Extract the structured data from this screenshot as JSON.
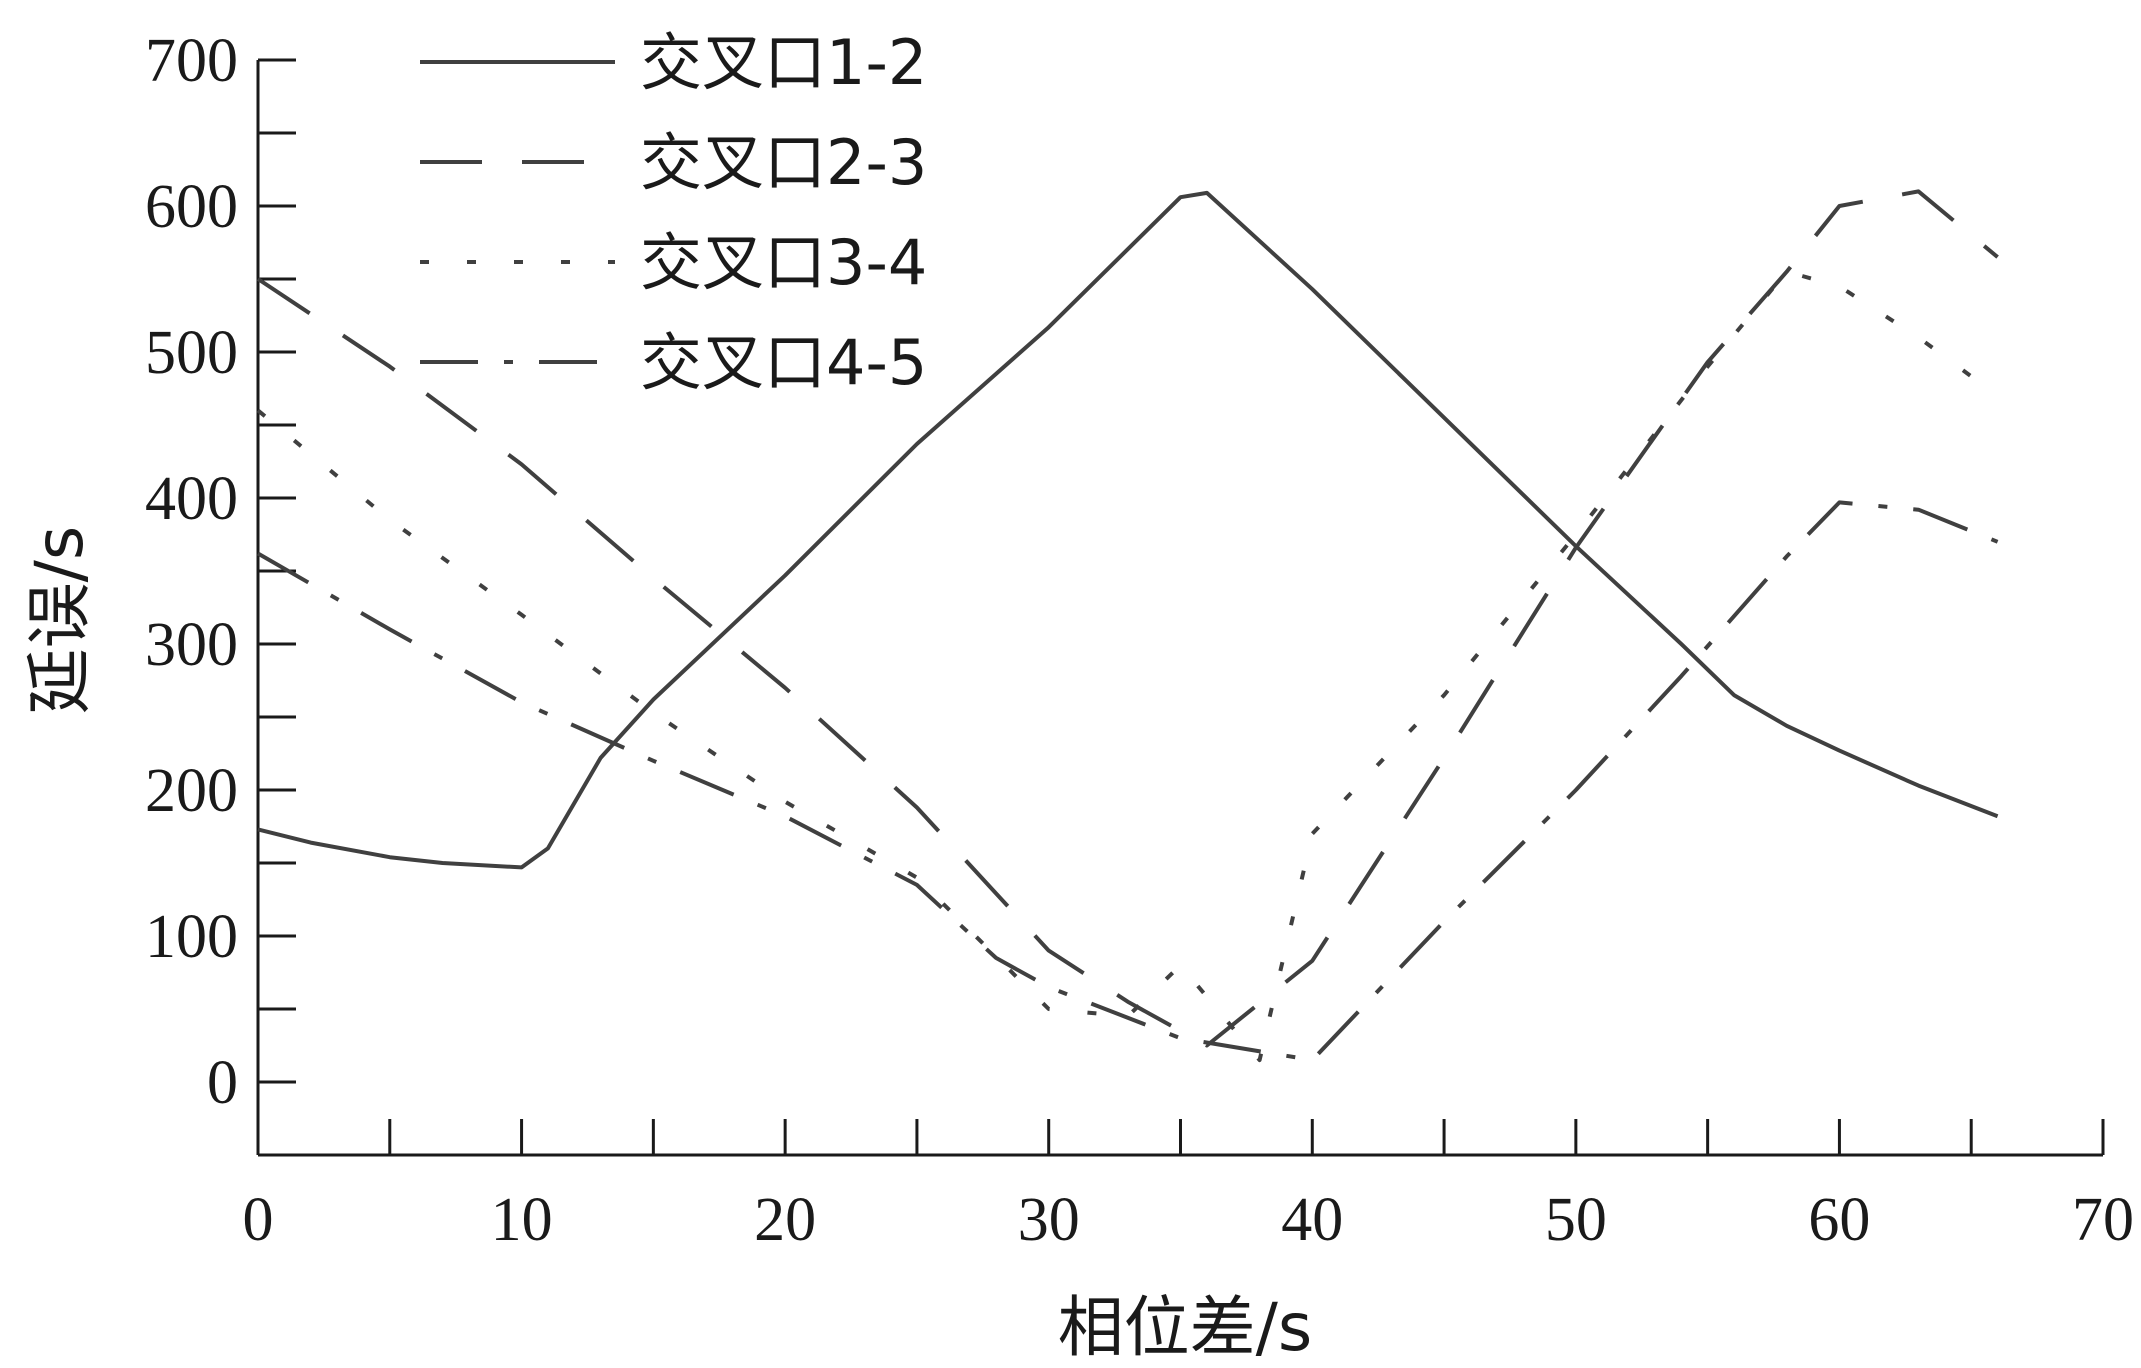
{
  "chart_data": {
    "type": "line",
    "title": "",
    "xlabel": "相位差/s",
    "ylabel": "延误/s",
    "xlim": [
      0,
      70
    ],
    "ylim": [
      -50,
      700
    ],
    "xticks": [
      0,
      10,
      20,
      30,
      40,
      50,
      60,
      70
    ],
    "yticks": [
      0,
      100,
      200,
      300,
      400,
      500,
      600,
      700
    ],
    "grid": false,
    "legend_position": "top-left",
    "series": [
      {
        "name": "交叉口1-2",
        "dash": "solid",
        "points": [
          [
            0,
            173
          ],
          [
            2,
            164
          ],
          [
            5,
            154
          ],
          [
            7,
            150
          ],
          [
            10,
            147
          ],
          [
            11,
            160
          ],
          [
            13,
            222
          ],
          [
            15,
            262
          ],
          [
            20,
            347
          ],
          [
            25,
            437
          ],
          [
            30,
            517
          ],
          [
            35,
            606
          ],
          [
            36,
            609
          ],
          [
            40,
            543
          ],
          [
            45,
            455
          ],
          [
            50,
            367
          ],
          [
            54,
            300
          ],
          [
            56,
            265
          ],
          [
            58,
            244
          ],
          [
            60,
            227
          ],
          [
            63,
            203
          ],
          [
            66,
            182
          ]
        ]
      },
      {
        "name": "交叉口2-3",
        "dash": "long-dash",
        "points": [
          [
            0,
            550
          ],
          [
            5,
            490
          ],
          [
            10,
            423
          ],
          [
            15,
            345
          ],
          [
            20,
            270
          ],
          [
            25,
            188
          ],
          [
            30,
            90
          ],
          [
            33,
            55
          ],
          [
            36,
            25
          ],
          [
            40,
            83
          ],
          [
            45,
            222
          ],
          [
            50,
            366
          ],
          [
            55,
            493
          ],
          [
            58,
            555
          ],
          [
            60,
            600
          ],
          [
            63,
            610
          ],
          [
            66,
            565
          ]
        ]
      },
      {
        "name": "交叉口3-4",
        "dash": "short-dash",
        "points": [
          [
            0,
            460
          ],
          [
            5,
            385
          ],
          [
            10,
            320
          ],
          [
            15,
            253
          ],
          [
            20,
            192
          ],
          [
            25,
            140
          ],
          [
            30,
            50
          ],
          [
            33,
            45
          ],
          [
            35,
            80
          ],
          [
            38,
            15
          ],
          [
            40,
            170
          ],
          [
            45,
            265
          ],
          [
            50,
            375
          ],
          [
            55,
            490
          ],
          [
            58,
            555
          ],
          [
            60,
            545
          ],
          [
            63,
            510
          ],
          [
            66,
            470
          ]
        ]
      },
      {
        "name": "交叉口4-5",
        "dash": "dash-dot",
        "points": [
          [
            0,
            362
          ],
          [
            5,
            310
          ],
          [
            10,
            260
          ],
          [
            15,
            220
          ],
          [
            20,
            182
          ],
          [
            25,
            135
          ],
          [
            28,
            85
          ],
          [
            30,
            65
          ],
          [
            35,
            30
          ],
          [
            40,
            15
          ],
          [
            45,
            110
          ],
          [
            50,
            200
          ],
          [
            54,
            278
          ],
          [
            58,
            360
          ],
          [
            60,
            397
          ],
          [
            63,
            392
          ],
          [
            66,
            370
          ]
        ]
      }
    ]
  }
}
